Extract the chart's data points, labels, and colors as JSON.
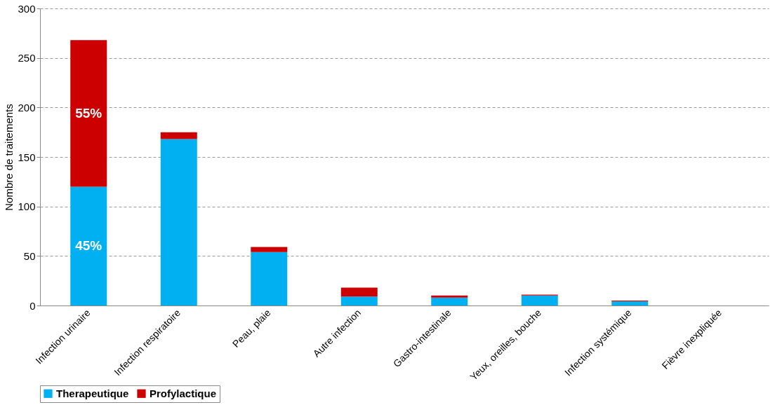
{
  "chart_data": {
    "type": "bar",
    "ylabel": "Nombre de traitements",
    "stacked": true,
    "categories": [
      "Infection urinaire",
      "Infection respiratoire",
      "Peau, plaie",
      "Autre infection",
      "Gastro-intestinale",
      "Yeux, oreilles, bouche",
      "Infection systémique",
      "Fièvre inexpliquée"
    ],
    "series": [
      {
        "name": "Therapeutique",
        "color": "#00b0f0",
        "values": [
          120,
          168,
          54,
          9,
          8,
          10,
          4,
          0
        ]
      },
      {
        "name": "Profylactique",
        "color": "#cc0000",
        "values": [
          148,
          7,
          5,
          9,
          2,
          1,
          1,
          0
        ]
      }
    ],
    "annotations": [
      "45%",
      "55%"
    ],
    "ylim": [
      0,
      300
    ],
    "yticks": [
      0,
      50,
      100,
      150,
      200,
      250,
      300
    ],
    "grid": "y",
    "legend": "bottom"
  }
}
